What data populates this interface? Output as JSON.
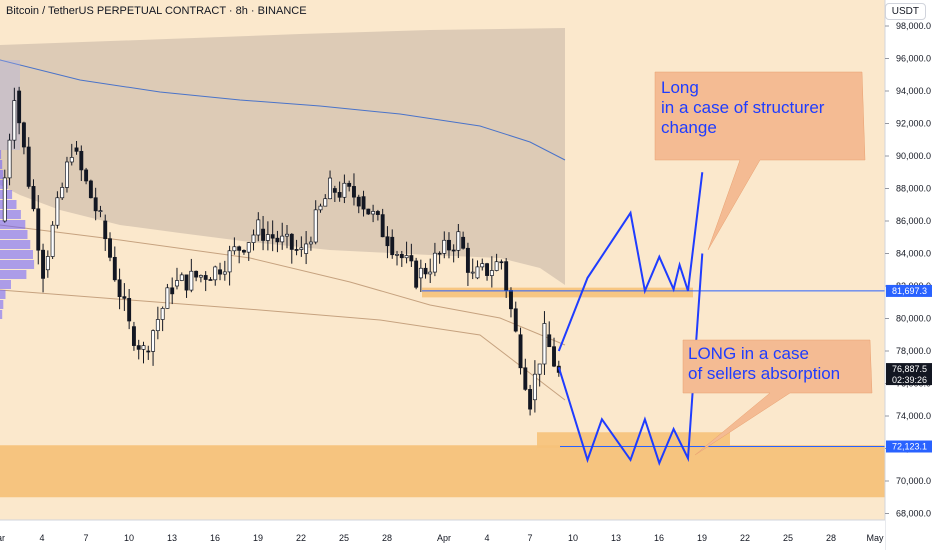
{
  "header": {
    "title": "Bitcoin / TetherUS PERPETUAL CONTRACT · 8h · BINANCE",
    "currency": "USDT"
  },
  "price_axis": {
    "ticks": [
      "98,000.0",
      "96,000.0",
      "94,000.0",
      "92,000.0",
      "90,000.0",
      "88,000.0",
      "86,000.0",
      "84,000.0",
      "82,000.0",
      "80,000.0",
      "78,000.0",
      "76,000.0",
      "74,000.0",
      "72,000.0",
      "70,000.0",
      "68,000.0"
    ],
    "tags": [
      {
        "price": 81697.3,
        "text": "81,697.3",
        "color": "#2962ff"
      },
      {
        "price": 72123.1,
        "text": "72,123.1",
        "color": "#2962ff"
      },
      {
        "price": 76887.5,
        "text": "76,887.5",
        "sub": "02:39:26",
        "color": "#131722"
      }
    ]
  },
  "time_axis": {
    "labels": [
      "ar",
      "4",
      "7",
      "10",
      "13",
      "16",
      "19",
      "22",
      "25",
      "28",
      "Apr",
      "4",
      "7",
      "10",
      "13",
      "16",
      "19",
      "22",
      "25",
      "28",
      "May"
    ]
  },
  "annotations": [
    {
      "lines": [
        "Long",
        "in a case of structurer",
        " change"
      ]
    },
    {
      "lines": [
        "LONG in a case",
        "of sellers absorption"
      ]
    }
  ],
  "colors": {
    "background": "#fbe8cc",
    "cloud": "#d9c8b4",
    "zone": "#f6c27a",
    "bull": "#ffffff",
    "bear": "#131722",
    "drawing": "#1f3cff",
    "level_line": "#2962ff",
    "note_fill": "#f4bb93"
  },
  "chart_data": {
    "type": "candlestick",
    "instrument": "Bitcoin / TetherUS PERPETUAL CONTRACT",
    "timeframe": "8h",
    "exchange": "BINANCE",
    "last_price": 76887.5,
    "countdown": "02:39:26",
    "y_axis": {
      "unit": "USDT",
      "range": [
        67000,
        99000
      ]
    },
    "levels": [
      81697.3,
      72123.1
    ],
    "zones": [
      [
        69000,
        72200
      ],
      [
        81300,
        81900
      ],
      [
        72050,
        73000
      ]
    ],
    "price_path": [
      {
        "date": "Mar 1",
        "price": 86000
      },
      {
        "date": "Mar 2",
        "price": 94000
      },
      {
        "date": "Mar 4",
        "price": 83000
      },
      {
        "date": "Mar 6",
        "price": 90500
      },
      {
        "date": "Mar 8",
        "price": 86000
      },
      {
        "date": "Mar 10",
        "price": 79500
      },
      {
        "date": "Mar 11",
        "price": 78000
      },
      {
        "date": "Mar 13",
        "price": 82000
      },
      {
        "date": "Mar 16",
        "price": 83000
      },
      {
        "date": "Mar 19",
        "price": 85500
      },
      {
        "date": "Mar 22",
        "price": 84000
      },
      {
        "date": "Mar 24",
        "price": 88000
      },
      {
        "date": "Mar 26",
        "price": 87500
      },
      {
        "date": "Mar 28",
        "price": 85000
      },
      {
        "date": "Mar 30",
        "price": 82500
      },
      {
        "date": "Apr 2",
        "price": 85000
      },
      {
        "date": "Apr 3",
        "price": 82500
      },
      {
        "date": "Apr 5",
        "price": 83500
      },
      {
        "date": "Apr 6",
        "price": 79000
      },
      {
        "date": "Apr 7",
        "price": 75000
      },
      {
        "date": "Apr 8",
        "price": 79000
      },
      {
        "date": "Apr 9",
        "price": 76500
      }
    ],
    "scenario_paths": [
      {
        "name": "Long",
        "points": [
          {
            "date": "Apr 9",
            "price": 78000
          },
          {
            "date": "Apr 11",
            "price": 82500
          },
          {
            "date": "Apr 14",
            "price": 86500
          },
          {
            "date": "Apr 15",
            "price": 81700
          },
          {
            "date": "Apr 16",
            "price": 83800
          },
          {
            "date": "Apr 17",
            "price": 81800
          },
          {
            "date": "Apr 17",
            "price": 83300
          },
          {
            "date": "Apr 18",
            "price": 81700
          },
          {
            "date": "Apr 19",
            "price": 89000
          }
        ]
      },
      {
        "name": "LONG",
        "points": [
          {
            "date": "Apr 9",
            "price": 77000
          },
          {
            "date": "Apr 11",
            "price": 71300
          },
          {
            "date": "Apr 12",
            "price": 73800
          },
          {
            "date": "Apr 14",
            "price": 71300
          },
          {
            "date": "Apr 15",
            "price": 73800
          },
          {
            "date": "Apr 16",
            "price": 71100
          },
          {
            "date": "Apr 17",
            "price": 73200
          },
          {
            "date": "Apr 18",
            "price": 71400
          },
          {
            "date": "Apr 19",
            "price": 84000
          }
        ]
      }
    ]
  }
}
